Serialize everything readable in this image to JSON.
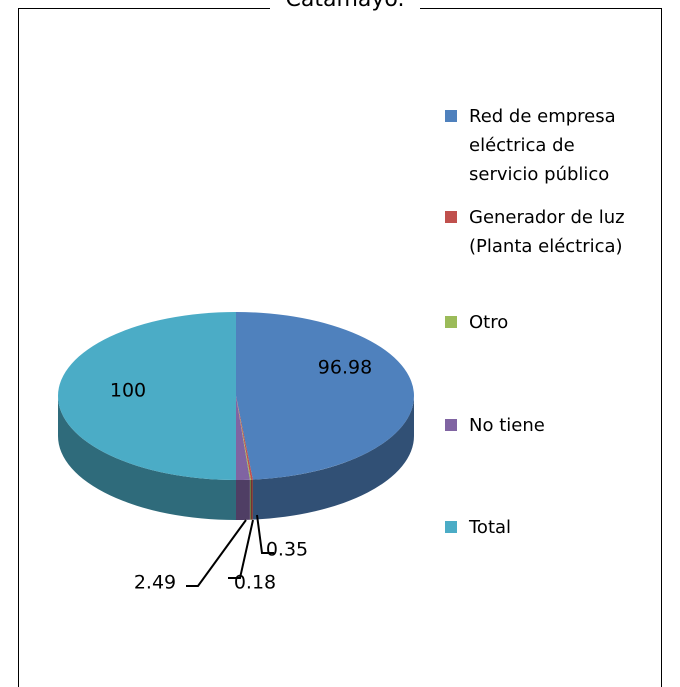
{
  "chart_data": {
    "type": "pie",
    "title": "Catamayo.",
    "categories": [
      "Red de empresa eléctrica de servicio público",
      "Generador de luz (Planta eléctrica)",
      "Otro",
      "No tiene",
      "Total"
    ],
    "values": [
      96.98,
      0.35,
      0.18,
      2.49,
      100
    ],
    "colors": [
      "#4f81bd",
      "#c0504d",
      "#9bbb59",
      "#8064a2",
      "#4bacc6"
    ],
    "legend": "right"
  }
}
